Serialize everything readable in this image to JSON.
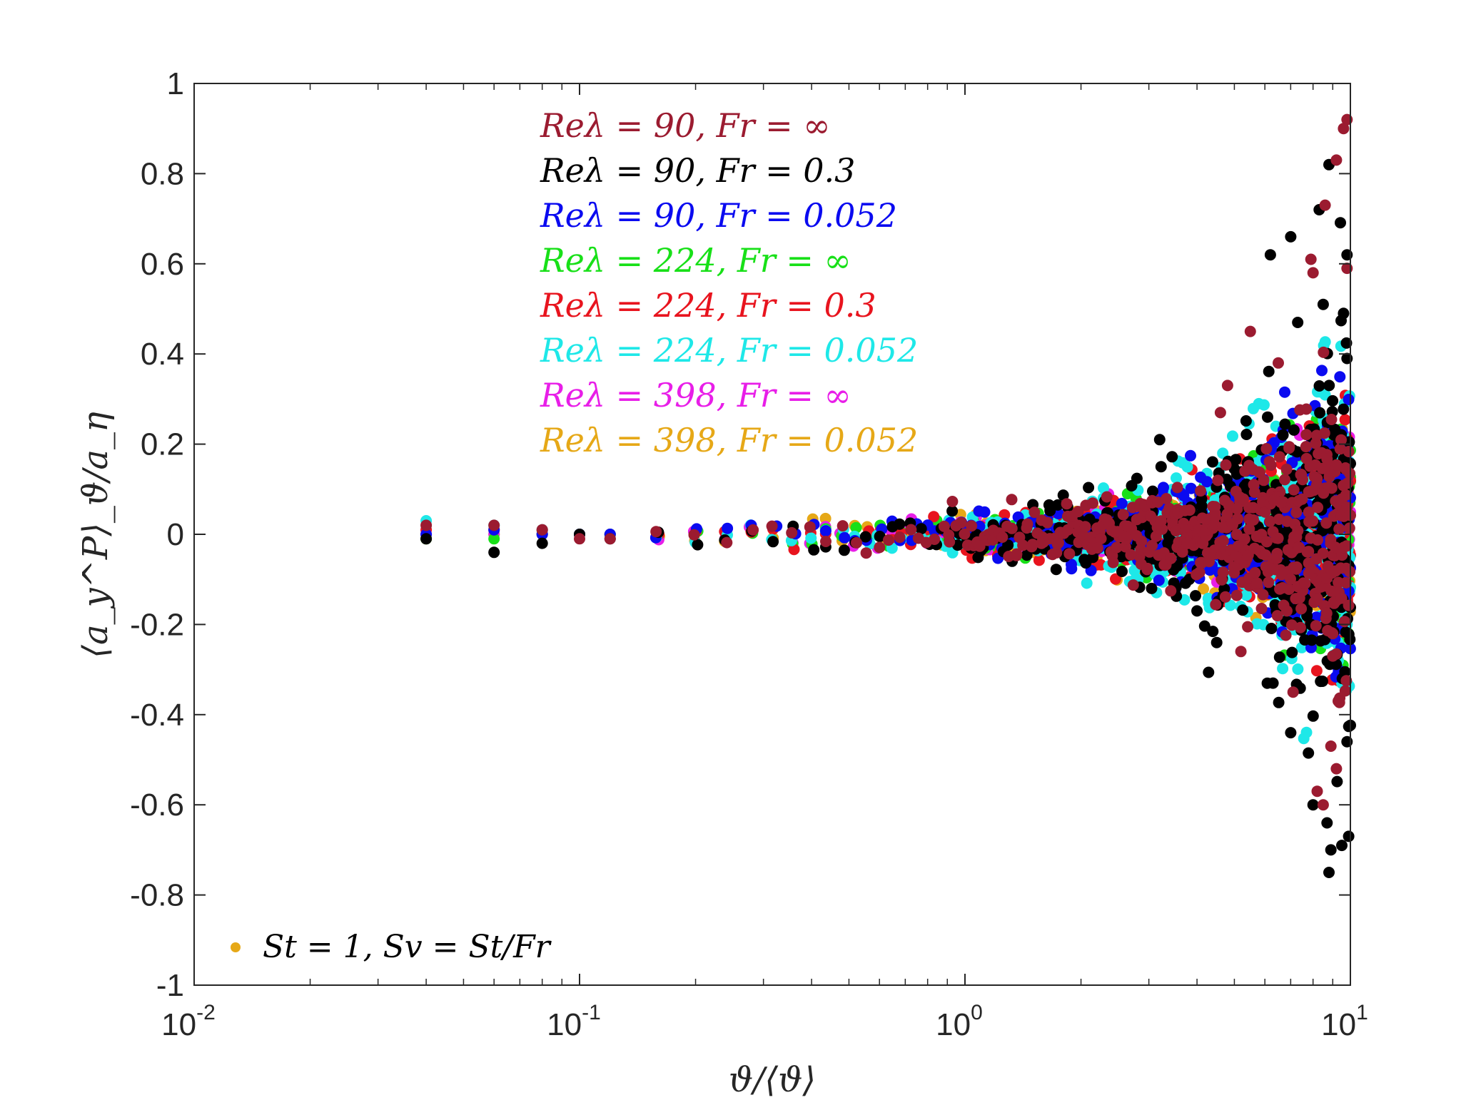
{
  "chart_data": {
    "type": "scatter",
    "title": "",
    "xlabel": "ϑ/⟨ϑ⟩",
    "ylabel": "⟨a_y^P⟩_ϑ/a_η",
    "xscale": "log",
    "xlim": [
      0.01,
      10
    ],
    "ylim": [
      -1,
      1
    ],
    "x_ticks": [
      {
        "value": 0.01,
        "base": "10",
        "exp": "-2"
      },
      {
        "value": 0.1,
        "base": "10",
        "exp": "-1"
      },
      {
        "value": 1,
        "base": "10",
        "exp": "0"
      },
      {
        "value": 10,
        "base": "10",
        "exp": "1"
      }
    ],
    "y_ticks": [
      {
        "value": 1,
        "label": "1"
      },
      {
        "value": 0.8,
        "label": "0.8"
      },
      {
        "value": 0.6,
        "label": "0.6"
      },
      {
        "value": 0.4,
        "label": "0.4"
      },
      {
        "value": 0.2,
        "label": "0.2"
      },
      {
        "value": 0,
        "label": "0"
      },
      {
        "value": -0.2,
        "label": "-0.2"
      },
      {
        "value": -0.4,
        "label": "-0.4"
      },
      {
        "value": -0.6,
        "label": "-0.6"
      },
      {
        "value": -0.8,
        "label": "-0.8"
      },
      {
        "value": -1,
        "label": "-1"
      }
    ],
    "legend_position": "top-center",
    "series": [
      {
        "name": "Re_λ = 90, Fr = ∞",
        "label": "Reλ = 90, Fr = ∞",
        "color": "#9b1b30",
        "seed": 11,
        "spread": 0.055,
        "fine": [
          [
            0.04,
            0.02
          ],
          [
            0.06,
            0.02
          ],
          [
            0.08,
            0.01
          ],
          [
            0.1,
            -0.01
          ],
          [
            0.12,
            -0.01
          ]
        ],
        "extremes": [
          [
            9.8,
            0.92
          ],
          [
            9.6,
            0.9
          ],
          [
            9.2,
            0.83
          ],
          [
            8.6,
            0.73
          ],
          [
            7.9,
            0.61
          ],
          [
            9.8,
            0.59
          ],
          [
            8.0,
            0.58
          ],
          [
            5.5,
            0.45
          ],
          [
            4.8,
            0.33
          ],
          [
            4.6,
            0.27
          ],
          [
            6.5,
            0.38
          ],
          [
            9.0,
            -0.27
          ],
          [
            9.3,
            -0.37
          ],
          [
            8.9,
            -0.47
          ],
          [
            9.2,
            -0.52
          ],
          [
            8.2,
            -0.57
          ],
          [
            7.1,
            -0.35
          ],
          [
            5.2,
            -0.26
          ],
          [
            8.5,
            -0.6
          ]
        ]
      },
      {
        "name": "Re_λ = 90, Fr = 0.3",
        "label": "Reλ = 90, Fr = 0.3",
        "color": "#000000",
        "seed": 23,
        "spread": 0.07,
        "fine": [
          [
            0.04,
            -0.01
          ],
          [
            0.06,
            -0.04
          ],
          [
            0.08,
            -0.02
          ],
          [
            0.1,
            0.0
          ],
          [
            0.12,
            -0.01
          ]
        ],
        "extremes": [
          [
            8.8,
            0.82
          ],
          [
            8.3,
            0.72
          ],
          [
            7.0,
            0.66
          ],
          [
            6.2,
            0.62
          ],
          [
            9.8,
            0.62
          ],
          [
            8.5,
            0.51
          ],
          [
            9.6,
            0.49
          ],
          [
            9.8,
            0.39
          ],
          [
            7.3,
            0.47
          ],
          [
            8.8,
            -0.75
          ],
          [
            8.9,
            -0.7
          ],
          [
            9.5,
            -0.69
          ],
          [
            9.9,
            -0.67
          ],
          [
            8.0,
            -0.6
          ],
          [
            8.7,
            -0.64
          ],
          [
            9.8,
            -0.46
          ],
          [
            7.0,
            -0.44
          ],
          [
            6.3,
            -0.33
          ],
          [
            4.5,
            -0.24
          ],
          [
            4.0,
            -0.17
          ],
          [
            3.2,
            0.21
          ]
        ]
      },
      {
        "name": "Re_λ = 90, Fr = 0.052",
        "label": "Reλ = 90, Fr = 0.052",
        "color": "#0a0af0",
        "seed": 37,
        "spread": 0.05,
        "fine": [
          [
            0.04,
            0.0
          ],
          [
            0.06,
            0.01
          ],
          [
            0.08,
            0.0
          ],
          [
            0.1,
            0.0
          ],
          [
            0.12,
            0.0
          ]
        ],
        "extremes": [
          [
            9.5,
            0.12
          ],
          [
            9.8,
            0.08
          ],
          [
            9.2,
            -0.12
          ],
          [
            8.5,
            0.1
          ],
          [
            9.8,
            -0.08
          ]
        ]
      },
      {
        "name": "Re_λ = 224, Fr = ∞",
        "label": "Reλ = 224, Fr = ∞",
        "color": "#18e018",
        "seed": 41,
        "spread": 0.04,
        "fine": [
          [
            0.04,
            -0.01
          ],
          [
            0.06,
            -0.01
          ],
          [
            0.08,
            0.0
          ],
          [
            0.1,
            0.0
          ],
          [
            0.12,
            0.0
          ]
        ],
        "extremes": [
          [
            9.0,
            0.06
          ],
          [
            8.0,
            -0.07
          ],
          [
            9.6,
            0.05
          ]
        ]
      },
      {
        "name": "Re_λ = 224, Fr = 0.3",
        "label": "Reλ = 224, Fr = 0.3",
        "color": "#e8141e",
        "seed": 53,
        "spread": 0.045,
        "fine": [
          [
            0.04,
            0.01
          ],
          [
            0.06,
            0.01
          ],
          [
            0.08,
            0.01
          ],
          [
            0.1,
            0.0
          ],
          [
            0.12,
            0.0
          ]
        ],
        "extremes": [
          [
            9.2,
            -0.15
          ],
          [
            8.8,
            0.18
          ]
        ]
      },
      {
        "name": "Re_λ = 224, Fr = 0.052",
        "label": "Reλ = 224, Fr = 0.052",
        "color": "#1ee8e8",
        "seed": 67,
        "spread": 0.06,
        "fine": [
          [
            0.04,
            0.03
          ],
          [
            0.06,
            0.02
          ],
          [
            0.08,
            0.01
          ],
          [
            0.1,
            0.0
          ],
          [
            0.12,
            0.0
          ]
        ],
        "extremes": [
          [
            9.5,
            -0.33
          ],
          [
            9.8,
            -0.2
          ],
          [
            9.3,
            -0.28
          ],
          [
            9.8,
            -0.12
          ],
          [
            9.0,
            -0.22
          ]
        ]
      },
      {
        "name": "Re_λ = 398, Fr = ∞",
        "label": "Reλ = 398, Fr = ∞",
        "color": "#e81ee8",
        "seed": 79,
        "spread": 0.035,
        "fine": [
          [
            0.04,
            0.0
          ],
          [
            0.06,
            0.0
          ],
          [
            0.08,
            0.0
          ],
          [
            0.1,
            0.0
          ],
          [
            0.12,
            0.0
          ]
        ],
        "extremes": []
      },
      {
        "name": "Re_λ = 398, Fr = 0.052",
        "label": "Reλ = 398, Fr = 0.052",
        "color": "#e6a817",
        "seed": 83,
        "spread": 0.035,
        "fine": [
          [
            0.04,
            -0.01
          ],
          [
            0.06,
            0.0
          ],
          [
            0.08,
            0.0
          ],
          [
            0.1,
            0.0
          ],
          [
            0.12,
            0.0
          ]
        ],
        "extremes": []
      }
    ],
    "plot_order": [
      7,
      6,
      3,
      4,
      5,
      2,
      1,
      0
    ],
    "annotation": {
      "text": "St = 1, Sv = St/Fr",
      "color": "#e6a817",
      "position": "bottom-left"
    }
  }
}
